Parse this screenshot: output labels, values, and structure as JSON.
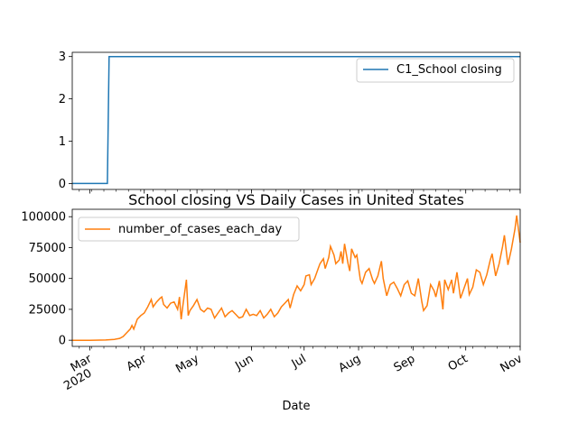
{
  "chart_data": [
    {
      "type": "line",
      "title": "",
      "xlabel": "",
      "ylabel": "",
      "x_range": [
        "2020-02-20",
        "2020-11-01"
      ],
      "ylim": [
        -0.14,
        3.1
      ],
      "yticks": [
        0,
        1,
        2,
        3
      ],
      "legend_position": "top-right",
      "grid": false,
      "series": [
        {
          "name": "C1_School closing",
          "color": "#1f77b4",
          "points": [
            [
              "2020-02-20",
              0
            ],
            [
              "2020-03-11",
              0
            ],
            [
              "2020-03-12",
              3
            ],
            [
              "2020-11-01",
              3
            ]
          ]
        }
      ]
    },
    {
      "type": "line",
      "title": "School closing VS Daily Cases in United States",
      "xlabel": "Date",
      "ylabel": "",
      "x_range": [
        "2020-02-20",
        "2020-11-01"
      ],
      "ylim": [
        -5000,
        106000
      ],
      "yticks": [
        0,
        25000,
        50000,
        75000,
        100000
      ],
      "x_tick_labels": [
        {
          "date": "2020-03-01",
          "label": "Mar",
          "sublabel": "2020"
        },
        {
          "date": "2020-04-01",
          "label": "Apr"
        },
        {
          "date": "2020-05-01",
          "label": "May"
        },
        {
          "date": "2020-06-01",
          "label": "Jun"
        },
        {
          "date": "2020-07-01",
          "label": "Jul"
        },
        {
          "date": "2020-08-01",
          "label": "Aug"
        },
        {
          "date": "2020-09-01",
          "label": "Sep"
        },
        {
          "date": "2020-10-01",
          "label": "Oct"
        },
        {
          "date": "2020-11-01",
          "label": "Nov"
        }
      ],
      "legend_position": "top-left",
      "grid": false,
      "series": [
        {
          "name": "number_of_cases_each_day",
          "color": "#ff7f0e",
          "points": [
            [
              "2020-02-20",
              0
            ],
            [
              "2020-03-01",
              0
            ],
            [
              "2020-03-10",
              200
            ],
            [
              "2020-03-15",
              700
            ],
            [
              "2020-03-18",
              1500
            ],
            [
              "2020-03-20",
              3000
            ],
            [
              "2020-03-22",
              6000
            ],
            [
              "2020-03-24",
              9000
            ],
            [
              "2020-03-25",
              12000
            ],
            [
              "2020-03-26",
              9000
            ],
            [
              "2020-03-28",
              17000
            ],
            [
              "2020-03-30",
              20000
            ],
            [
              "2020-04-01",
              22000
            ],
            [
              "2020-04-03",
              27000
            ],
            [
              "2020-04-05",
              33000
            ],
            [
              "2020-04-06",
              27000
            ],
            [
              "2020-04-08",
              31000
            ],
            [
              "2020-04-10",
              34000
            ],
            [
              "2020-04-11",
              35000
            ],
            [
              "2020-04-12",
              29000
            ],
            [
              "2020-04-14",
              26000
            ],
            [
              "2020-04-16",
              30000
            ],
            [
              "2020-04-18",
              31000
            ],
            [
              "2020-04-20",
              25000
            ],
            [
              "2020-04-21",
              35000
            ],
            [
              "2020-04-22",
              17000
            ],
            [
              "2020-04-23",
              28000
            ],
            [
              "2020-04-25",
              49000
            ],
            [
              "2020-04-26",
              20000
            ],
            [
              "2020-04-27",
              24000
            ],
            [
              "2020-04-29",
              28000
            ],
            [
              "2020-05-01",
              33000
            ],
            [
              "2020-05-03",
              25000
            ],
            [
              "2020-05-05",
              23000
            ],
            [
              "2020-05-07",
              26000
            ],
            [
              "2020-05-09",
              25000
            ],
            [
              "2020-05-11",
              18000
            ],
            [
              "2020-05-13",
              22000
            ],
            [
              "2020-05-15",
              26000
            ],
            [
              "2020-05-17",
              19000
            ],
            [
              "2020-05-19",
              22000
            ],
            [
              "2020-05-21",
              24000
            ],
            [
              "2020-05-23",
              21000
            ],
            [
              "2020-05-25",
              18000
            ],
            [
              "2020-05-27",
              19000
            ],
            [
              "2020-05-29",
              25000
            ],
            [
              "2020-05-31",
              20000
            ],
            [
              "2020-06-02",
              21000
            ],
            [
              "2020-06-04",
              20000
            ],
            [
              "2020-06-06",
              24000
            ],
            [
              "2020-06-08",
              18000
            ],
            [
              "2020-06-10",
              21000
            ],
            [
              "2020-06-12",
              25000
            ],
            [
              "2020-06-14",
              19000
            ],
            [
              "2020-06-16",
              22000
            ],
            [
              "2020-06-18",
              27000
            ],
            [
              "2020-06-20",
              30000
            ],
            [
              "2020-06-22",
              33000
            ],
            [
              "2020-06-23",
              26000
            ],
            [
              "2020-06-25",
              37000
            ],
            [
              "2020-06-27",
              44000
            ],
            [
              "2020-06-29",
              40000
            ],
            [
              "2020-07-01",
              45000
            ],
            [
              "2020-07-02",
              52000
            ],
            [
              "2020-07-04",
              53000
            ],
            [
              "2020-07-05",
              45000
            ],
            [
              "2020-07-07",
              50000
            ],
            [
              "2020-07-09",
              58000
            ],
            [
              "2020-07-10",
              62000
            ],
            [
              "2020-07-12",
              66000
            ],
            [
              "2020-07-13",
              58000
            ],
            [
              "2020-07-15",
              67000
            ],
            [
              "2020-07-16",
              76000
            ],
            [
              "2020-07-18",
              69000
            ],
            [
              "2020-07-19",
              62000
            ],
            [
              "2020-07-21",
              65000
            ],
            [
              "2020-07-22",
              72000
            ],
            [
              "2020-07-23",
              62000
            ],
            [
              "2020-07-24",
              78000
            ],
            [
              "2020-07-26",
              62000
            ],
            [
              "2020-07-27",
              56000
            ],
            [
              "2020-07-28",
              74000
            ],
            [
              "2020-07-30",
              67000
            ],
            [
              "2020-07-31",
              69000
            ],
            [
              "2020-08-02",
              49000
            ],
            [
              "2020-08-03",
              46000
            ],
            [
              "2020-08-05",
              55000
            ],
            [
              "2020-08-07",
              58000
            ],
            [
              "2020-08-09",
              49000
            ],
            [
              "2020-08-10",
              46000
            ],
            [
              "2020-08-12",
              52000
            ],
            [
              "2020-08-14",
              64000
            ],
            [
              "2020-08-15",
              50000
            ],
            [
              "2020-08-17",
              36000
            ],
            [
              "2020-08-19",
              45000
            ],
            [
              "2020-08-21",
              47000
            ],
            [
              "2020-08-23",
              42000
            ],
            [
              "2020-08-25",
              36000
            ],
            [
              "2020-08-27",
              45000
            ],
            [
              "2020-08-29",
              48000
            ],
            [
              "2020-08-31",
              38000
            ],
            [
              "2020-09-02",
              36000
            ],
            [
              "2020-09-04",
              50000
            ],
            [
              "2020-09-06",
              31000
            ],
            [
              "2020-09-07",
              24000
            ],
            [
              "2020-09-09",
              28000
            ],
            [
              "2020-09-11",
              45000
            ],
            [
              "2020-09-13",
              40000
            ],
            [
              "2020-09-14",
              35000
            ],
            [
              "2020-09-16",
              48000
            ],
            [
              "2020-09-18",
              25000
            ],
            [
              "2020-09-19",
              49000
            ],
            [
              "2020-09-21",
              41000
            ],
            [
              "2020-09-23",
              49000
            ],
            [
              "2020-09-24",
              38000
            ],
            [
              "2020-09-26",
              55000
            ],
            [
              "2020-09-28",
              34000
            ],
            [
              "2020-09-30",
              42000
            ],
            [
              "2020-10-02",
              50000
            ],
            [
              "2020-10-03",
              37000
            ],
            [
              "2020-10-05",
              43000
            ],
            [
              "2020-10-07",
              57000
            ],
            [
              "2020-10-09",
              55000
            ],
            [
              "2020-10-11",
              45000
            ],
            [
              "2020-10-13",
              53000
            ],
            [
              "2020-10-15",
              65000
            ],
            [
              "2020-10-16",
              70000
            ],
            [
              "2020-10-18",
              52000
            ],
            [
              "2020-10-20",
              62000
            ],
            [
              "2020-10-22",
              76000
            ],
            [
              "2020-10-23",
              85000
            ],
            [
              "2020-10-25",
              61000
            ],
            [
              "2020-10-27",
              74000
            ],
            [
              "2020-10-29",
              90000
            ],
            [
              "2020-10-30",
              101000
            ],
            [
              "2020-11-01",
              79000
            ]
          ]
        }
      ]
    }
  ]
}
